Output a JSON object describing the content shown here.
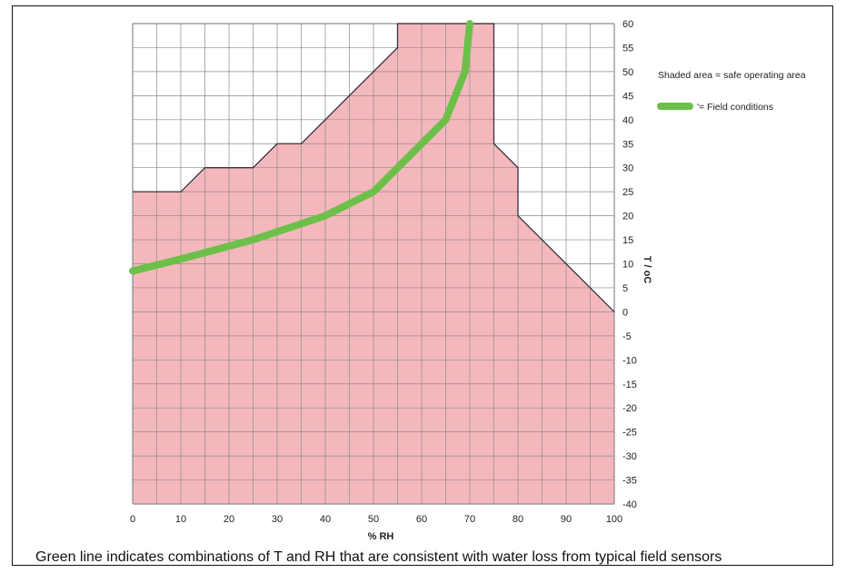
{
  "chart_data": {
    "type": "area",
    "xlabel": "% RH",
    "ylabel": "T / oC",
    "xlim": [
      0,
      100
    ],
    "ylim": [
      -40,
      60
    ],
    "xticks": [
      0,
      10,
      20,
      30,
      40,
      50,
      60,
      70,
      80,
      90,
      100
    ],
    "yticks": [
      60,
      55,
      50,
      45,
      40,
      35,
      30,
      25,
      20,
      15,
      10,
      5,
      0,
      -5,
      -10,
      -15,
      -20,
      -25,
      -30,
      -35,
      -40
    ],
    "grid": true,
    "grid_minor_step_x": 5,
    "legend_position": "right",
    "safe_area": {
      "label": "Shaded area = safe operating area",
      "color": "#f4b8bc",
      "boundary": [
        [
          0,
          -40
        ],
        [
          0,
          25
        ],
        [
          10,
          25
        ],
        [
          15,
          30
        ],
        [
          25,
          30
        ],
        [
          30,
          35
        ],
        [
          35,
          35
        ],
        [
          55,
          55
        ],
        [
          55,
          60
        ],
        [
          75,
          60
        ],
        [
          75,
          35
        ],
        [
          80,
          30
        ],
        [
          80,
          20
        ],
        [
          100,
          0
        ],
        [
          100,
          -40
        ]
      ]
    },
    "series": [
      {
        "name": "'= Field conditions",
        "color": "#6cc04a",
        "x": [
          0,
          10,
          25,
          40,
          50,
          57,
          65,
          69,
          70
        ],
        "y": [
          8.5,
          11,
          15,
          20,
          25,
          32,
          40,
          50,
          60
        ]
      }
    ]
  },
  "caption": "Green line indicates combinations of T and RH that are consistent with water loss from typical field sensors"
}
